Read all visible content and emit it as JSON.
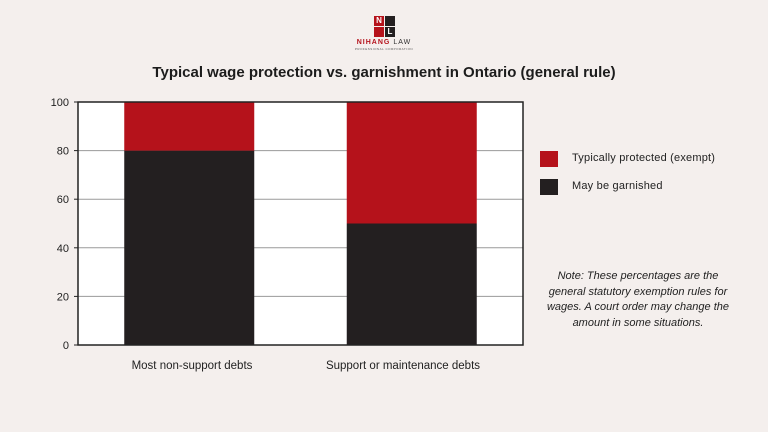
{
  "logo": {
    "mark_left": "N",
    "mark_right": "L",
    "name_red": "NIHANG",
    "name_rest": " LAW",
    "tagline": "PROFESSIONAL CORPORATION"
  },
  "chart_data": {
    "type": "bar",
    "stacked": true,
    "title": "Typical wage protection vs. garnishment in Ontario (general rule)",
    "xlabel": "",
    "ylabel": "",
    "ylim": [
      0,
      100
    ],
    "yticks": [
      0,
      20,
      40,
      60,
      80,
      100
    ],
    "categories": [
      "Most non-support debts",
      "Support or maintenance debts"
    ],
    "series": [
      {
        "name": "May be garnished",
        "color": "#231f20",
        "values": [
          80,
          50
        ]
      },
      {
        "name": "Typically protected (exempt)",
        "color": "#b5121b",
        "values": [
          20,
          50
        ]
      }
    ],
    "legend_position": "right",
    "grid": true
  },
  "note": "Note: These percentages are the general statutory exemption rules for wages. A court order may change the amount in some situations."
}
